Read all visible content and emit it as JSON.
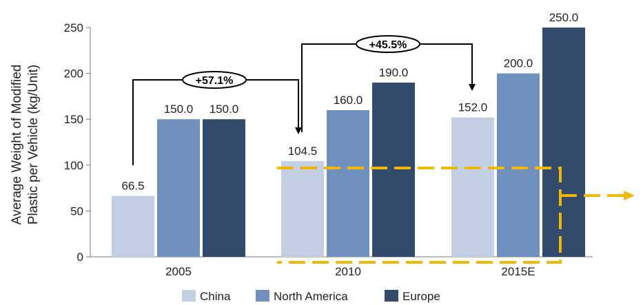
{
  "chart_data": {
    "type": "bar",
    "ylabel_line1": "Average Weight of Modified",
    "ylabel_line2": "Plastic per Vehicle (kg/Unit)",
    "ylim": [
      0,
      250
    ],
    "yticks": [
      0,
      50,
      100,
      150,
      200,
      250
    ],
    "categories": [
      "2005",
      "2010",
      "2015E"
    ],
    "series": [
      {
        "name": "China",
        "color": "#c3cfe2",
        "values": [
          66.5,
          104.5,
          152.0
        ],
        "labels": [
          "66.5",
          "104.5",
          "152.0"
        ]
      },
      {
        "name": "North America",
        "color": "#7090bd",
        "values": [
          150.0,
          160.0,
          200.0
        ],
        "labels": [
          "150.0",
          "160.0",
          "200.0"
        ]
      },
      {
        "name": "Europe",
        "color": "#324a6b",
        "values": [
          150.0,
          190.0,
          250.0
        ],
        "labels": [
          "150.0",
          "190.0",
          "250.0"
        ]
      }
    ],
    "legend_position": "bottom",
    "grid": false,
    "annotations": [
      {
        "label": "+57.1%",
        "from_category": 0,
        "to_category": 1,
        "series": "China"
      },
      {
        "label": "+45.5%",
        "from_category": 1,
        "to_category": 2,
        "series": "China"
      }
    ],
    "highlight_color": "#f2b705"
  }
}
